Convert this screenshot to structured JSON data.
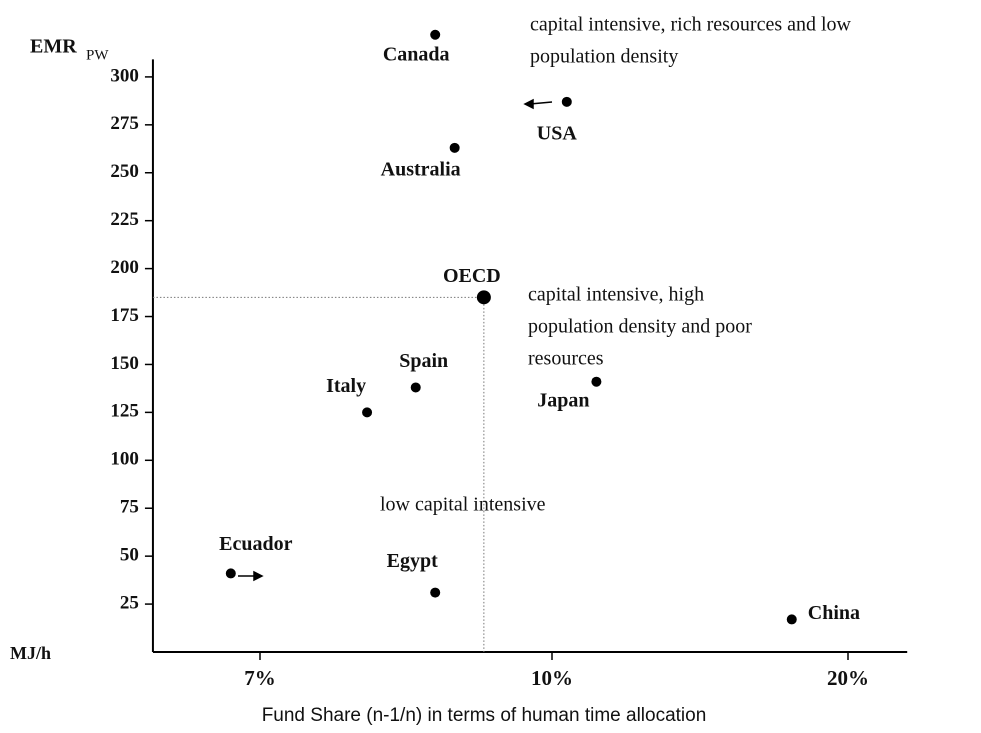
{
  "chart_data": {
    "type": "scatter",
    "y_label": "EMR",
    "y_label_sub": "PW",
    "y_unit": "MJ/h",
    "x_label": "Fund Share (n-1/n) in terms of human time allocation",
    "point_labels": [
      "Canada",
      "USA",
      "Australia",
      "OECD",
      "Spain",
      "Italy",
      "Japan",
      "Ecuador",
      "Egypt",
      "China"
    ],
    "x": [
      8.8,
      10.5,
      9.0,
      9.3,
      8.6,
      8.1,
      11.5,
      6.7,
      8.8,
      18.1
    ],
    "values": [
      322,
      287,
      263,
      185,
      138,
      125,
      141,
      41,
      31,
      17
    ],
    "color": "#000000",
    "xlim": [
      5.9,
      22
    ],
    "xticks": [
      {
        "value": 7,
        "label": "7%"
      },
      {
        "value": 10,
        "label": "10%"
      },
      {
        "value": 20,
        "label": "20%"
      }
    ],
    "ylim": [
      0,
      330
    ],
    "yticks": [
      25,
      50,
      75,
      100,
      125,
      150,
      175,
      200,
      225,
      250,
      275,
      300
    ],
    "reference_point": 3,
    "annotations": [
      [
        "capital intensive, rich resources and low",
        "population density"
      ],
      [
        "capital intensive, high",
        "population density and poor",
        "resources"
      ],
      [
        "low capital intensive"
      ]
    ]
  }
}
